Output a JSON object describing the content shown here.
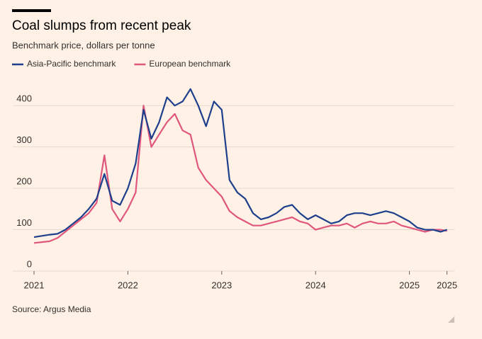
{
  "chart_data": {
    "type": "line",
    "title": "Coal slumps from recent peak",
    "subtitle": "Benchmark price, dollars per tonne",
    "source": "Source: Argus Media",
    "x": [
      2021,
      2021.083,
      2021.167,
      2021.25,
      2021.333,
      2021.417,
      2021.5,
      2021.583,
      2021.667,
      2021.75,
      2021.833,
      2021.917,
      2022,
      2022.083,
      2022.167,
      2022.25,
      2022.333,
      2022.417,
      2022.5,
      2022.583,
      2022.667,
      2022.75,
      2022.833,
      2022.917,
      2023,
      2023.083,
      2023.167,
      2023.25,
      2023.333,
      2023.417,
      2023.5,
      2023.583,
      2023.667,
      2023.75,
      2023.833,
      2023.917,
      2024,
      2024.083,
      2024.167,
      2024.25,
      2024.333,
      2024.417,
      2024.5,
      2024.583,
      2024.667,
      2024.75,
      2024.833,
      2024.917,
      2025,
      2025.083,
      2025.167,
      2025.25,
      2025.333,
      2025.4
    ],
    "series": [
      {
        "name": "Asia-Pacific benchmark",
        "color": "#1d3f8c",
        "values": [
          82,
          85,
          88,
          90,
          100,
          115,
          130,
          150,
          175,
          235,
          170,
          160,
          200,
          260,
          390,
          320,
          360,
          420,
          400,
          410,
          440,
          400,
          350,
          410,
          390,
          220,
          190,
          175,
          140,
          125,
          130,
          140,
          155,
          160,
          140,
          125,
          135,
          125,
          115,
          120,
          135,
          140,
          140,
          135,
          140,
          145,
          140,
          130,
          120,
          105,
          100,
          100,
          95,
          100
        ]
      },
      {
        "name": "European benchmark",
        "color": "#e0577d",
        "values": [
          68,
          70,
          72,
          80,
          95,
          110,
          125,
          140,
          165,
          280,
          150,
          120,
          150,
          190,
          400,
          300,
          330,
          360,
          380,
          340,
          330,
          250,
          220,
          200,
          180,
          145,
          130,
          120,
          110,
          110,
          115,
          120,
          125,
          130,
          120,
          115,
          100,
          105,
          110,
          110,
          115,
          105,
          115,
          120,
          115,
          115,
          120,
          110,
          105,
          100,
          95,
          100,
          100,
          97
        ]
      }
    ],
    "xlim": [
      2021,
      2025.4
    ],
    "xticks": [
      2021,
      2022,
      2023,
      2024,
      2025,
      {
        "value": 2025.4,
        "label": "2025"
      }
    ],
    "ylim": [
      0,
      450
    ],
    "yticks": [
      0,
      100,
      200,
      300,
      400
    ],
    "grid": true
  }
}
